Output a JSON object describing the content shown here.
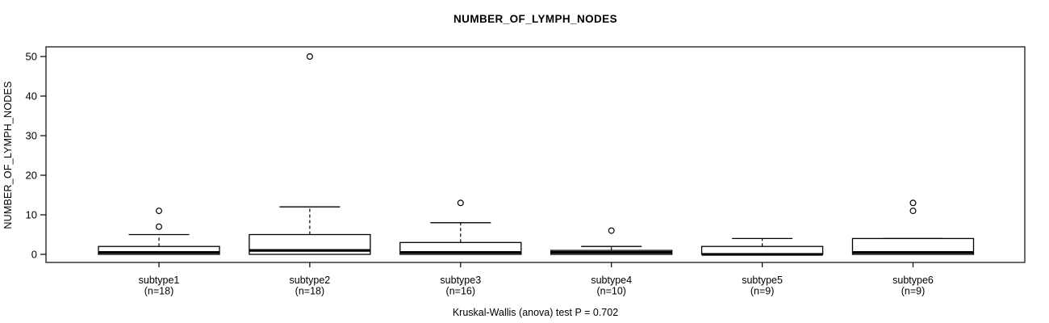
{
  "chart_data": {
    "type": "boxplot",
    "title": "NUMBER_OF_LYMPH_NODES",
    "ylabel": "NUMBER_OF_LYMPH_NODES",
    "caption": "Kruskal-Wallis (anova) test P = 0.702",
    "ylim": [
      0,
      50
    ],
    "yticks": [
      0,
      10,
      20,
      30,
      40,
      50
    ],
    "grid": false,
    "legend": "none",
    "colors": {
      "box_fill": "#ffffff",
      "line": "#000000"
    },
    "groups": [
      {
        "label": "subtype1",
        "n_label": "(n=18)",
        "n": 18,
        "q1": 0,
        "median": 0.5,
        "q3": 2,
        "whisker_low": 0,
        "whisker_high": 5,
        "outliers": [
          7,
          11
        ]
      },
      {
        "label": "subtype2",
        "n_label": "(n=18)",
        "n": 18,
        "q1": 0,
        "median": 1,
        "q3": 5,
        "whisker_low": 0,
        "whisker_high": 12,
        "outliers": [
          50
        ]
      },
      {
        "label": "subtype3",
        "n_label": "(n=16)",
        "n": 16,
        "q1": 0,
        "median": 0.5,
        "q3": 3,
        "whisker_low": 0,
        "whisker_high": 8,
        "outliers": [
          13
        ]
      },
      {
        "label": "subtype4",
        "n_label": "(n=10)",
        "n": 10,
        "q1": 0,
        "median": 0.5,
        "q3": 1,
        "whisker_low": 0,
        "whisker_high": 2,
        "outliers": [
          6
        ]
      },
      {
        "label": "subtype5",
        "n_label": "(n=9)",
        "n": 9,
        "q1": 0,
        "median": 0,
        "q3": 2,
        "whisker_low": 0,
        "whisker_high": 4,
        "outliers": []
      },
      {
        "label": "subtype6",
        "n_label": "(n=9)",
        "n": 9,
        "q1": 0,
        "median": 0.5,
        "q3": 4,
        "whisker_low": 0,
        "whisker_high": 4,
        "outliers": [
          11,
          13
        ]
      }
    ]
  }
}
